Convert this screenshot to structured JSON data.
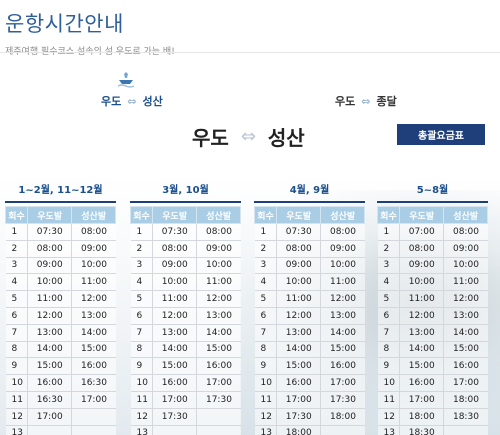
{
  "header": {
    "title": "운항시간안내",
    "subtitle": "제주여행 필수코스 섬속의 섬 우도로 가는 배!"
  },
  "route_tabs": [
    {
      "from": "우도",
      "to": "성산",
      "arrow": "⇔",
      "active": true
    },
    {
      "from": "우도",
      "to": "종달",
      "arrow": "⇔",
      "active": false
    }
  ],
  "current_route": {
    "from": "우도",
    "arrow": "⇔",
    "to": "성산"
  },
  "fare_button": "총괄요금표",
  "columns": {
    "no": "회수",
    "from": "우도발",
    "to": "성산발"
  },
  "schedules": [
    {
      "period": "1~2월, 11~12월",
      "rows": [
        [
          "1",
          "07:30",
          "08:00"
        ],
        [
          "2",
          "08:00",
          "09:00"
        ],
        [
          "3",
          "09:00",
          "10:00"
        ],
        [
          "4",
          "10:00",
          "11:00"
        ],
        [
          "5",
          "11:00",
          "12:00"
        ],
        [
          "6",
          "12:00",
          "13:00"
        ],
        [
          "7",
          "13:00",
          "14:00"
        ],
        [
          "8",
          "14:00",
          "15:00"
        ],
        [
          "9",
          "15:00",
          "16:00"
        ],
        [
          "10",
          "16:00",
          "16:30"
        ],
        [
          "11",
          "16:30",
          "17:00"
        ],
        [
          "12",
          "17:00",
          ""
        ],
        [
          "13",
          "",
          ""
        ]
      ]
    },
    {
      "period": "3월, 10월",
      "rows": [
        [
          "1",
          "07:30",
          "08:00"
        ],
        [
          "2",
          "08:00",
          "09:00"
        ],
        [
          "3",
          "09:00",
          "10:00"
        ],
        [
          "4",
          "10:00",
          "11:00"
        ],
        [
          "5",
          "11:00",
          "12:00"
        ],
        [
          "6",
          "12:00",
          "13:00"
        ],
        [
          "7",
          "13:00",
          "14:00"
        ],
        [
          "8",
          "14:00",
          "15:00"
        ],
        [
          "9",
          "15:00",
          "16:00"
        ],
        [
          "10",
          "16:00",
          "17:00"
        ],
        [
          "11",
          "17:00",
          "17:30"
        ],
        [
          "12",
          "17:30",
          ""
        ],
        [
          "13",
          "",
          ""
        ]
      ]
    },
    {
      "period": "4월, 9월",
      "rows": [
        [
          "1",
          "07:30",
          "08:00"
        ],
        [
          "2",
          "08:00",
          "09:00"
        ],
        [
          "3",
          "09:00",
          "10:00"
        ],
        [
          "4",
          "10:00",
          "11:00"
        ],
        [
          "5",
          "11:00",
          "12:00"
        ],
        [
          "6",
          "12:00",
          "13:00"
        ],
        [
          "7",
          "13:00",
          "14:00"
        ],
        [
          "8",
          "14:00",
          "15:00"
        ],
        [
          "9",
          "15:00",
          "16:00"
        ],
        [
          "10",
          "16:00",
          "17:00"
        ],
        [
          "11",
          "17:00",
          "17:30"
        ],
        [
          "12",
          "17:30",
          "18:00"
        ],
        [
          "13",
          "18:00",
          ""
        ]
      ]
    },
    {
      "period": "5~8월",
      "rows": [
        [
          "1",
          "07:00",
          "08:00"
        ],
        [
          "2",
          "08:00",
          "09:00"
        ],
        [
          "3",
          "09:00",
          "10:00"
        ],
        [
          "4",
          "10:00",
          "11:00"
        ],
        [
          "5",
          "11:00",
          "12:00"
        ],
        [
          "6",
          "12:00",
          "13:00"
        ],
        [
          "7",
          "13:00",
          "14:00"
        ],
        [
          "8",
          "14:00",
          "15:00"
        ],
        [
          "9",
          "15:00",
          "16:00"
        ],
        [
          "10",
          "16:00",
          "17:00"
        ],
        [
          "11",
          "17:00",
          "18:00"
        ],
        [
          "12",
          "18:00",
          "18:30"
        ],
        [
          "13",
          "18:30",
          ""
        ]
      ]
    }
  ],
  "icons": {
    "boat": "boat-icon"
  },
  "colors": {
    "brand_blue": "#2f5f9a",
    "button_navy": "#1e3f7a",
    "table_header": "#a8cde4"
  }
}
